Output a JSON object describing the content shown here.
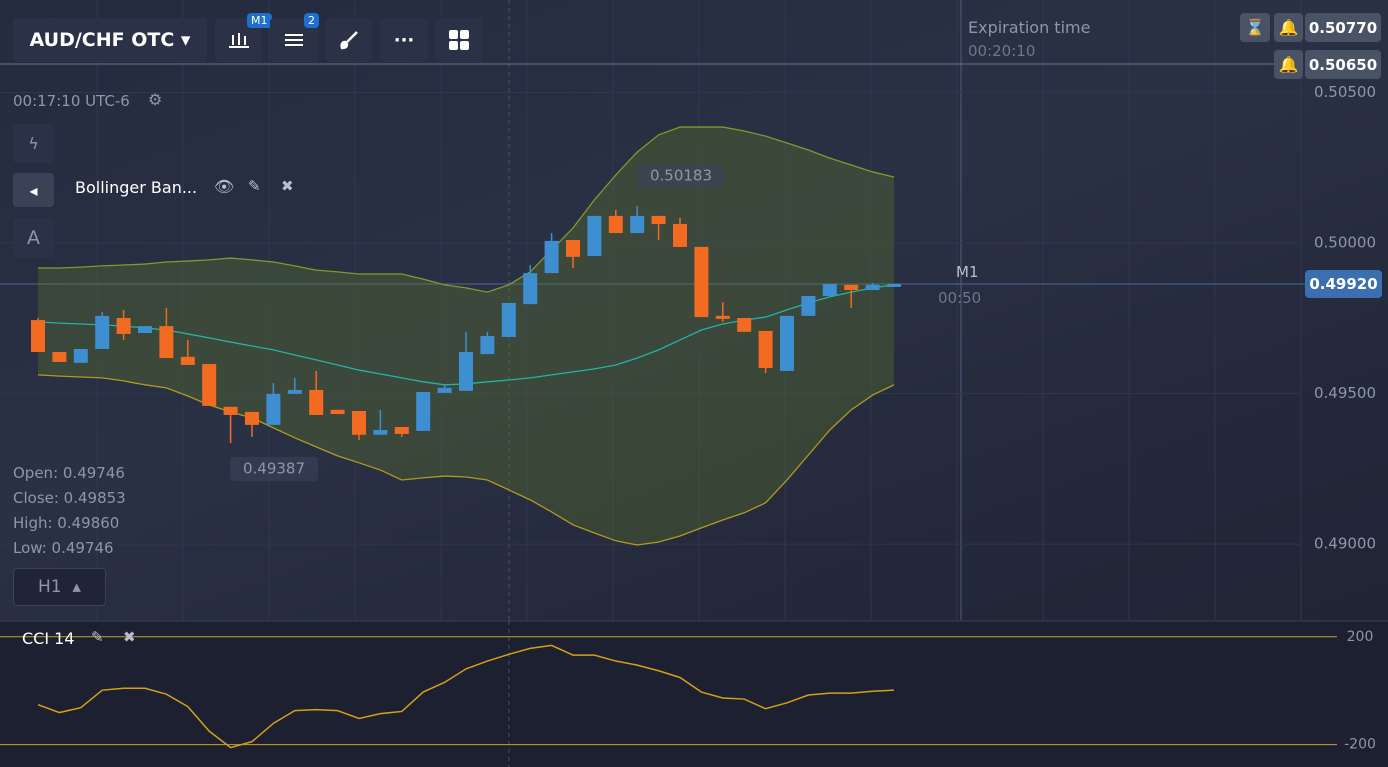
{
  "toolbar": {
    "pair": "AUD/CHF OTC",
    "timeframe_badge": "M1",
    "indicators_badge": "2"
  },
  "clock": "00:17:10 UTC-6",
  "expiration": {
    "label": "Expiration time",
    "time": "00:20:10"
  },
  "alerts": [
    "0.50770",
    "0.50650"
  ],
  "indicator_legend": "Bollinger Ban...",
  "drawing_tool": "A",
  "ohlc": {
    "open": "Open: 0.49746",
    "close": "Close: 0.49853",
    "high": "High: 0.49860",
    "low": "Low: 0.49746"
  },
  "period": "H1",
  "current": {
    "timeframe": "M1",
    "countdown": "00:50",
    "price": "0.49920"
  },
  "chart_data": {
    "type": "candlestick",
    "ylim": [
      0.48748,
      0.50807
    ],
    "yticks": [
      {
        "value": 0.505,
        "label": "0.50500"
      },
      {
        "value": 0.5,
        "label": "0.50000"
      },
      {
        "value": 0.495,
        "label": "0.49500"
      },
      {
        "value": 0.49,
        "label": "0.49000"
      }
    ],
    "colors": {
      "up": "#3d8fd1",
      "down": "#f26b21"
    },
    "candles": {
      "open": [
        0.49744,
        0.49638,
        0.49602,
        0.49648,
        0.49751,
        0.49701,
        0.49724,
        0.49622,
        0.49598,
        0.49456,
        0.49439,
        0.49396,
        0.49499,
        0.49512,
        0.49446,
        0.49442,
        0.49363,
        0.49389,
        0.49376,
        0.49502,
        0.49509,
        0.49631,
        0.49688,
        0.49797,
        0.499,
        0.5001,
        0.49957,
        0.5009,
        0.50033,
        0.5009,
        0.50063,
        0.49987,
        0.49758,
        0.49751,
        0.49708,
        0.49575,
        0.49758,
        0.49824,
        0.49861,
        0.49844,
        0.49854
      ],
      "high": [
        0.49751,
        0.49638,
        0.49648,
        0.49771,
        0.49778,
        0.49724,
        0.49784,
        0.49678,
        0.49598,
        0.49456,
        0.49439,
        0.49535,
        0.49552,
        0.49575,
        0.49446,
        0.49442,
        0.49446,
        0.49389,
        0.49505,
        0.49532,
        0.49705,
        0.49705,
        0.49801,
        0.49927,
        0.50033,
        0.5001,
        0.5009,
        0.5011,
        0.50123,
        0.5009,
        0.50083,
        0.49987,
        0.49804,
        0.49751,
        0.49708,
        0.49758,
        0.49824,
        0.49864,
        0.49861,
        0.49867,
        0.49864
      ],
      "low": [
        0.49638,
        0.49605,
        0.49602,
        0.49648,
        0.49678,
        0.49701,
        0.49618,
        0.49595,
        0.49459,
        0.49336,
        0.49356,
        0.49396,
        0.49499,
        0.49429,
        0.49432,
        0.49346,
        0.49363,
        0.49356,
        0.49376,
        0.49502,
        0.49509,
        0.49631,
        0.49688,
        0.49797,
        0.499,
        0.49917,
        0.49957,
        0.50033,
        0.50033,
        0.5001,
        0.49987,
        0.49754,
        0.49738,
        0.49705,
        0.49568,
        0.49575,
        0.49758,
        0.49824,
        0.49784,
        0.49844,
        0.49854
      ],
      "close": [
        0.49638,
        0.49605,
        0.49648,
        0.49758,
        0.49698,
        0.49724,
        0.49618,
        0.49595,
        0.49459,
        0.49429,
        0.49396,
        0.49499,
        0.49512,
        0.49429,
        0.49432,
        0.49363,
        0.49379,
        0.49366,
        0.49505,
        0.49519,
        0.49638,
        0.49691,
        0.49801,
        0.499,
        0.50007,
        0.49954,
        0.5009,
        0.50033,
        0.5009,
        0.50063,
        0.49987,
        0.49754,
        0.49748,
        0.49705,
        0.49585,
        0.49758,
        0.49824,
        0.49864,
        0.49844,
        0.49861,
        0.49864
      ]
    },
    "bollinger": {
      "upper": [
        0.49917,
        0.49917,
        0.4992,
        0.49924,
        0.49927,
        0.4993,
        0.49937,
        0.4994,
        0.49944,
        0.4995,
        0.49944,
        0.49937,
        0.49924,
        0.4991,
        0.49904,
        0.49897,
        0.49897,
        0.49897,
        0.4988,
        0.49861,
        0.49851,
        0.49837,
        0.49861,
        0.49904,
        0.49977,
        0.5005,
        0.50143,
        0.50226,
        0.50302,
        0.50359,
        0.50385,
        0.50385,
        0.50385,
        0.50372,
        0.50355,
        0.50332,
        0.50309,
        0.50282,
        0.50259,
        0.50236,
        0.50219
      ],
      "middle": [
        0.49738,
        0.49734,
        0.49731,
        0.49728,
        0.49724,
        0.49718,
        0.49711,
        0.49698,
        0.49685,
        0.49671,
        0.49658,
        0.49645,
        0.49628,
        0.49612,
        0.49595,
        0.49578,
        0.49565,
        0.49552,
        0.49539,
        0.49529,
        0.49532,
        0.49539,
        0.49545,
        0.49552,
        0.49562,
        0.49572,
        0.49582,
        0.49595,
        0.49618,
        0.49645,
        0.49678,
        0.49711,
        0.49731,
        0.49744,
        0.49754,
        0.49778,
        0.49801,
        0.49821,
        0.49837,
        0.49851,
        0.49861
      ],
      "lower": [
        0.49562,
        0.49558,
        0.49555,
        0.49552,
        0.49542,
        0.49529,
        0.49519,
        0.49492,
        0.49462,
        0.49439,
        0.49419,
        0.49386,
        0.49353,
        0.49323,
        0.49293,
        0.4927,
        0.49246,
        0.49213,
        0.4922,
        0.49226,
        0.49223,
        0.49213,
        0.4918,
        0.49147,
        0.49107,
        0.49064,
        0.49037,
        0.49011,
        0.48997,
        0.49007,
        0.49027,
        0.49054,
        0.4908,
        0.49104,
        0.49137,
        0.49213,
        0.49296,
        0.49379,
        0.49446,
        0.49495,
        0.49529
      ],
      "labels": [
        "0.50183",
        "0.49387"
      ]
    },
    "cci": {
      "name": "CCI 14",
      "color": "#d4a017",
      "ylim": [
        -283,
        240
      ],
      "yticks": [
        200,
        -200
      ],
      "values": [
        -52,
        -81,
        -63,
        2,
        9,
        9,
        -13,
        -59,
        -150,
        -211,
        -189,
        -121,
        -74,
        -70,
        -74,
        -103,
        -85,
        -77,
        -5,
        31,
        81,
        110,
        135,
        157,
        168,
        132,
        132,
        110,
        95,
        74,
        49,
        -5,
        -27,
        -31,
        -67,
        -45,
        -16,
        -9,
        -9,
        -2,
        2
      ]
    }
  }
}
